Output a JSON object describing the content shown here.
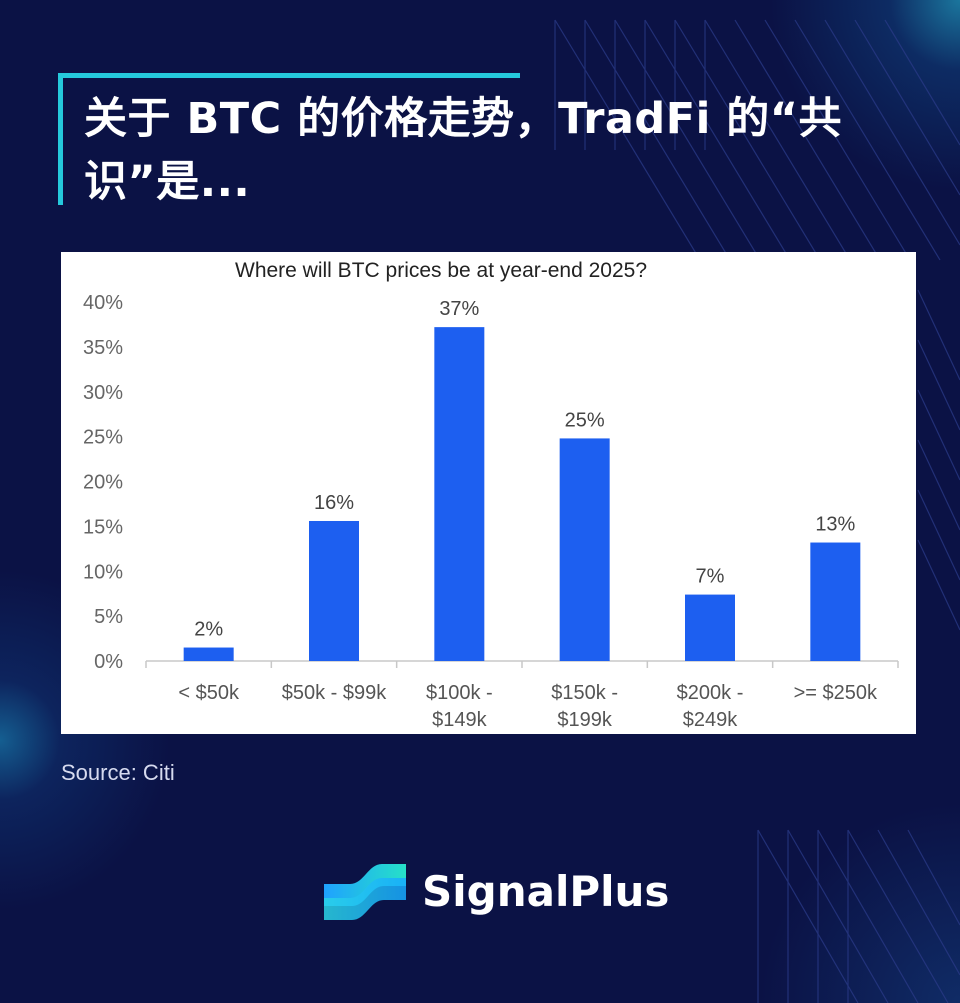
{
  "header": {
    "title": "关于 BTC 的价格走势，TradFi 的“共识”是..."
  },
  "source_text": "Source: Citi",
  "brand": {
    "name": "SignalPlus",
    "logo_icon": "signalplus-logo-icon"
  },
  "colors": {
    "background": "#0b1245",
    "accent": "#25c9dc",
    "bar": "#1d5ff0",
    "chart_bg": "#ffffff"
  },
  "chart_data": {
    "type": "bar",
    "title": "Where will BTC prices be at year-end 2025?",
    "categories": [
      [
        "< $50k"
      ],
      [
        "$50k - $99k"
      ],
      [
        "$100k -",
        "$149k"
      ],
      [
        "$150k -",
        "$199k"
      ],
      [
        "$200k -",
        "$249k"
      ],
      [
        ">= $250k"
      ]
    ],
    "values": [
      1.5,
      15.6,
      37.2,
      24.8,
      7.4,
      13.2
    ],
    "data_labels": [
      "2%",
      "16%",
      "37%",
      "25%",
      "7%",
      "13%"
    ],
    "y_ticks": [
      "0%",
      "5%",
      "10%",
      "15%",
      "20%",
      "25%",
      "30%",
      "35%",
      "40%"
    ],
    "ylim": [
      0,
      40
    ],
    "xlabel": "",
    "ylabel": "",
    "grid": false,
    "legend": "none"
  }
}
